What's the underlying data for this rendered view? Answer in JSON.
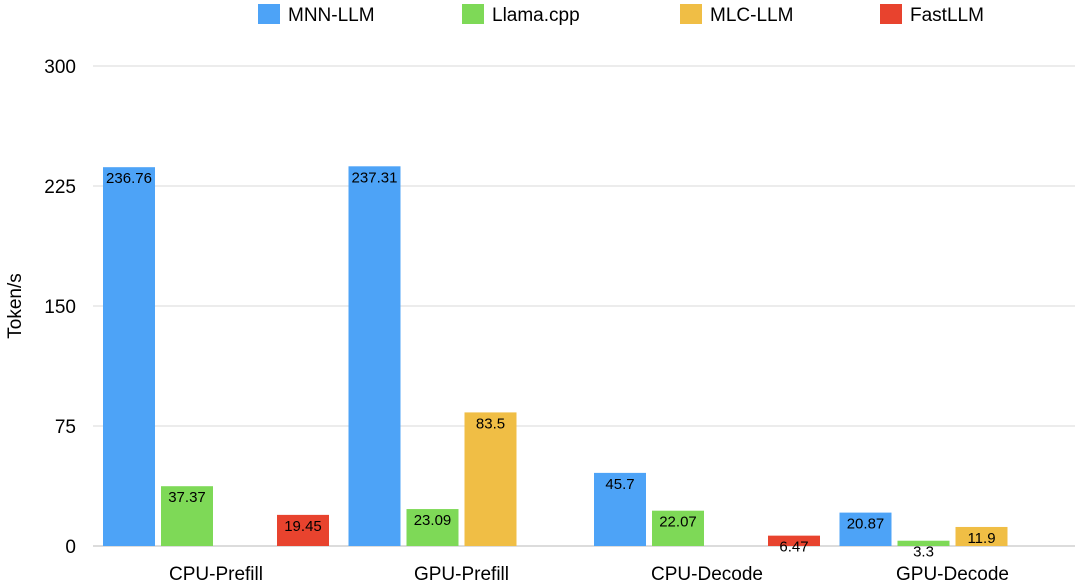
{
  "chart_data": {
    "type": "bar",
    "title": "",
    "xlabel": "",
    "ylabel": "Token/s",
    "ylim": [
      0,
      300
    ],
    "yticks": [
      0,
      75,
      150,
      225,
      300
    ],
    "grid": true,
    "legend_position": "top",
    "categories": [
      "CPU-Prefill",
      "GPU-Prefill",
      "CPU-Decode",
      "GPU-Decode"
    ],
    "series": [
      {
        "name": "MNN-LLM",
        "color": "#4da3f7",
        "values": [
          236.76,
          237.31,
          45.7,
          20.87
        ]
      },
      {
        "name": "Llama.cpp",
        "color": "#7ed957",
        "values": [
          37.37,
          23.09,
          22.07,
          3.3
        ]
      },
      {
        "name": "MLC-LLM",
        "color": "#f0be45",
        "values": [
          null,
          83.5,
          null,
          11.9
        ]
      },
      {
        "name": "FastLLM",
        "color": "#e8432e",
        "values": [
          19.45,
          null,
          6.47,
          null
        ]
      }
    ]
  }
}
